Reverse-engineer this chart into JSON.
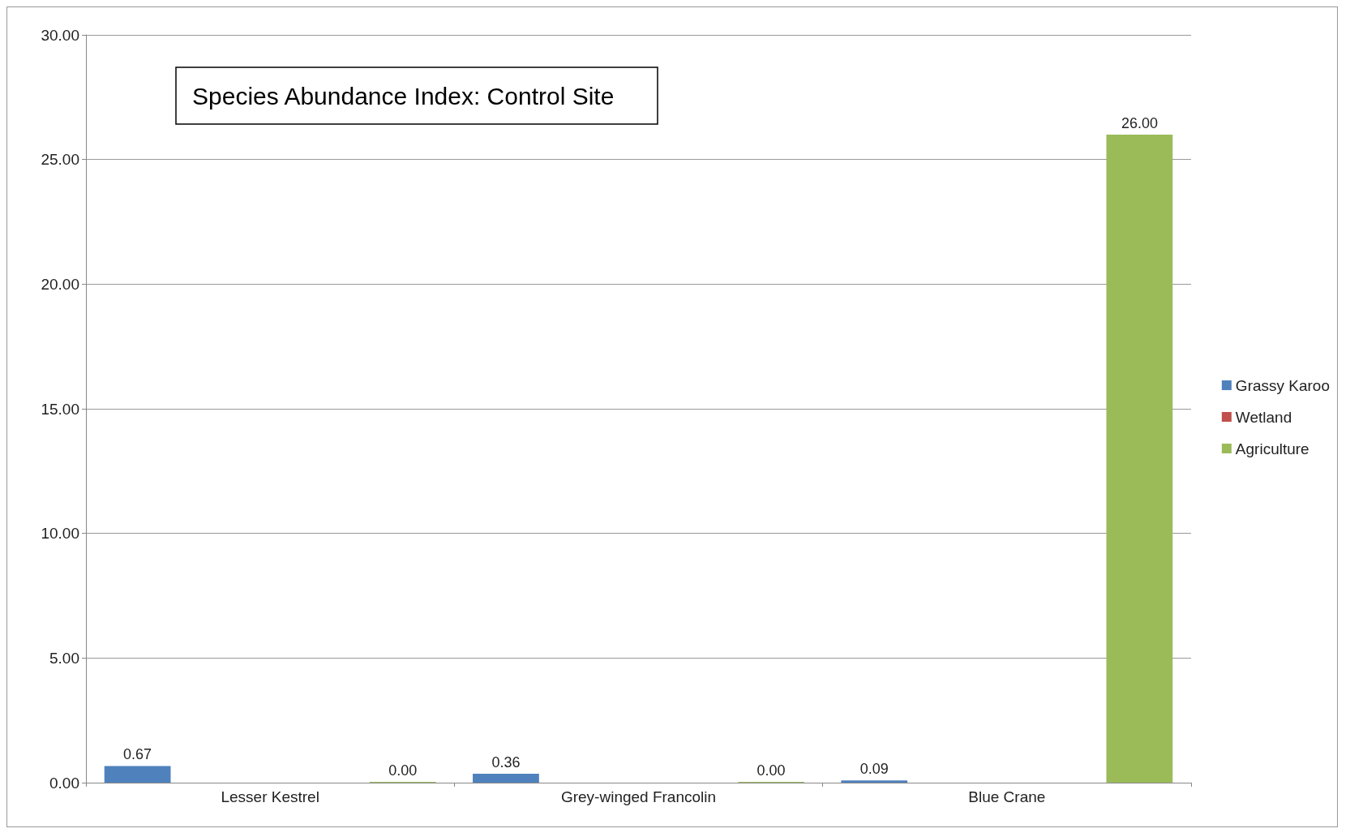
{
  "chart_data": {
    "type": "bar",
    "title": "Species Abundance Index: Control Site",
    "categories": [
      "Lesser Kestrel",
      "Grey-winged Francolin",
      "Blue Crane"
    ],
    "series": [
      {
        "name": "Grassy Karoo",
        "color": "#4f81bd",
        "values": [
          0.67,
          0.36,
          0.09
        ],
        "value_labels": [
          "0.67",
          "0.36",
          "0.09"
        ]
      },
      {
        "name": "Wetland",
        "color": "#c0504d",
        "values": [
          null,
          null,
          null
        ]
      },
      {
        "name": "Agriculture",
        "color": "#9bbb59",
        "values": [
          0,
          0,
          26
        ],
        "value_labels": [
          "0.00",
          "0.00",
          "26.00"
        ]
      }
    ],
    "ylim": [
      0,
      30
    ],
    "yticks": [
      {
        "value": 0,
        "label": "0.00"
      },
      {
        "value": 5,
        "label": "5.00"
      },
      {
        "value": 10,
        "label": "10.00"
      },
      {
        "value": 15,
        "label": "15.00"
      },
      {
        "value": 20,
        "label": "20.00"
      },
      {
        "value": 25,
        "label": "25.00"
      },
      {
        "value": 30,
        "label": "30.00"
      }
    ],
    "grid": "y",
    "legend": "right"
  }
}
